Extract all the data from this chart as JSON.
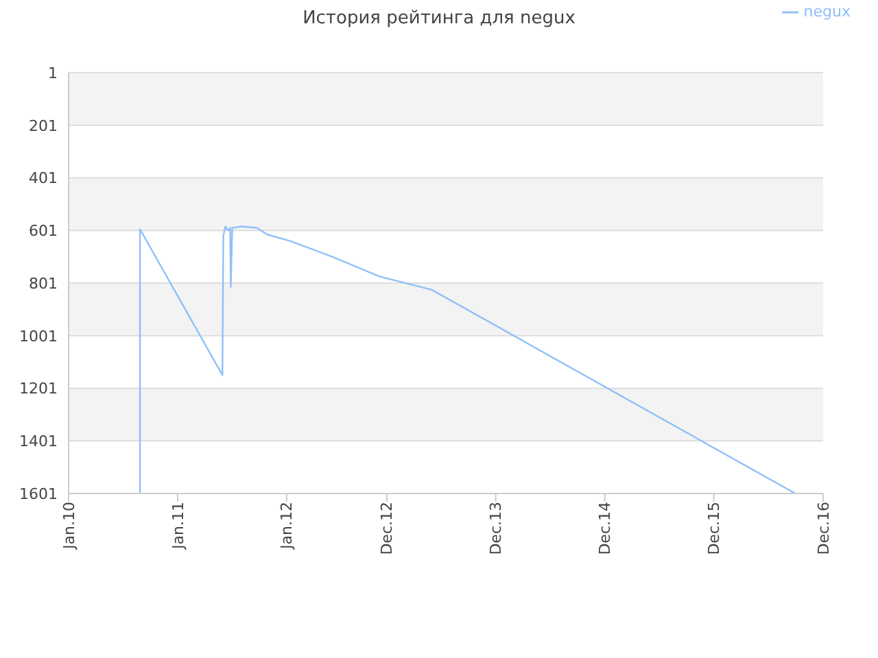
{
  "chart_data": {
    "type": "line",
    "title": "История рейтинга для negux",
    "series": [
      {
        "name": "negux",
        "color": "#90c0f8",
        "x": [
          "2010-08-28",
          "2010-08-28",
          "2011-05-31",
          "2011-06-03",
          "2011-06-10",
          "2011-06-19",
          "2011-06-26",
          "2011-06-28",
          "2011-07-03",
          "2011-08-04",
          "2011-09-24",
          "2011-10-27",
          "2012-01-13",
          "2012-06-02",
          "2012-11-07",
          "2013-04-30",
          "2016-08-30"
        ],
        "values": [
          1601,
          596,
          1151,
          621,
          586,
          601,
          591,
          816,
          591,
          586,
          591,
          616,
          641,
          701,
          776,
          826,
          1601
        ]
      }
    ],
    "xlim": [
      "2010-01-01",
      "2016-12-01"
    ],
    "xticks": [
      {
        "value": "2010-01-01",
        "label": "Jan.10"
      },
      {
        "value": "2011-01-01",
        "label": "Jan.11"
      },
      {
        "value": "2012-01-01",
        "label": "Jan.12"
      },
      {
        "value": "2012-12-01",
        "label": "Dec.12"
      },
      {
        "value": "2013-12-01",
        "label": "Dec.13"
      },
      {
        "value": "2014-12-01",
        "label": "Dec.14"
      },
      {
        "value": "2015-12-01",
        "label": "Dec.15"
      },
      {
        "value": "2016-12-01",
        "label": "Dec.16"
      }
    ],
    "ylim": [
      1601,
      1
    ],
    "yticks": [
      1,
      201,
      401,
      601,
      801,
      1001,
      1201,
      1401,
      1601
    ],
    "grid": "y",
    "legend": "top right",
    "marker": "none",
    "line_style": "solid"
  }
}
